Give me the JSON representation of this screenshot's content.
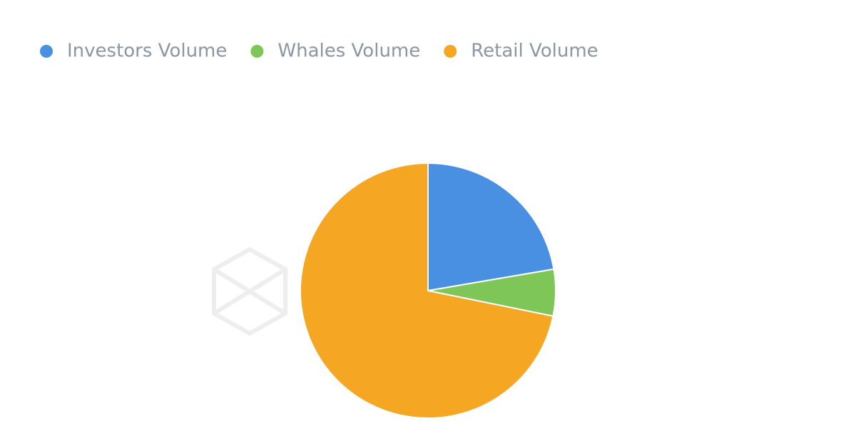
{
  "chart_data": {
    "type": "pie",
    "categories": [
      "Investors Volume",
      "Whales Volume",
      "Retail Volume"
    ],
    "values": [
      22.3,
      5.9,
      71.8
    ],
    "colors": [
      "#4a90e2",
      "#7ec657",
      "#f5a623"
    ],
    "legend": "top-left"
  }
}
